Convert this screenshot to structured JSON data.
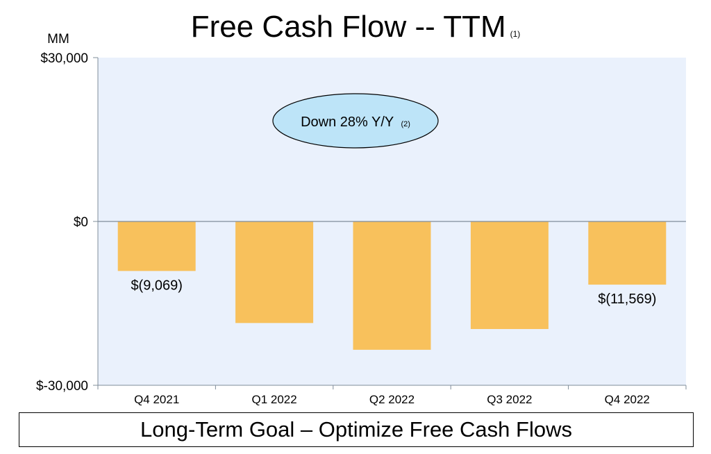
{
  "title": "Free Cash Flow -- TTM",
  "title_note": "(1)",
  "unit_label": "MM",
  "callout": {
    "text": "Down 28% Y/Y",
    "note": "(2)"
  },
  "footer_box": "Long-Term Goal – Optimize Free Cash Flows",
  "colors": {
    "bar": "#F8C15C",
    "plot_background": "#EAF1FC",
    "callout_fill": "#BDE4F8",
    "axis": "#7F8C9A"
  },
  "chart_data": {
    "type": "bar",
    "categories": [
      "Q4 2021",
      "Q1 2022",
      "Q2 2022",
      "Q3 2022",
      "Q4 2022"
    ],
    "values": [
      -9069,
      -18600,
      -23500,
      -19700,
      -11569
    ],
    "data_labels": [
      "$(9,069)",
      "",
      "",
      "",
      "$(11,569)"
    ],
    "y_ticks": [
      30000,
      0,
      -30000
    ],
    "y_tick_labels": [
      "$30,000",
      "$0",
      "$-30,000"
    ],
    "ylim": [
      -30000,
      30000
    ],
    "grid": false
  }
}
